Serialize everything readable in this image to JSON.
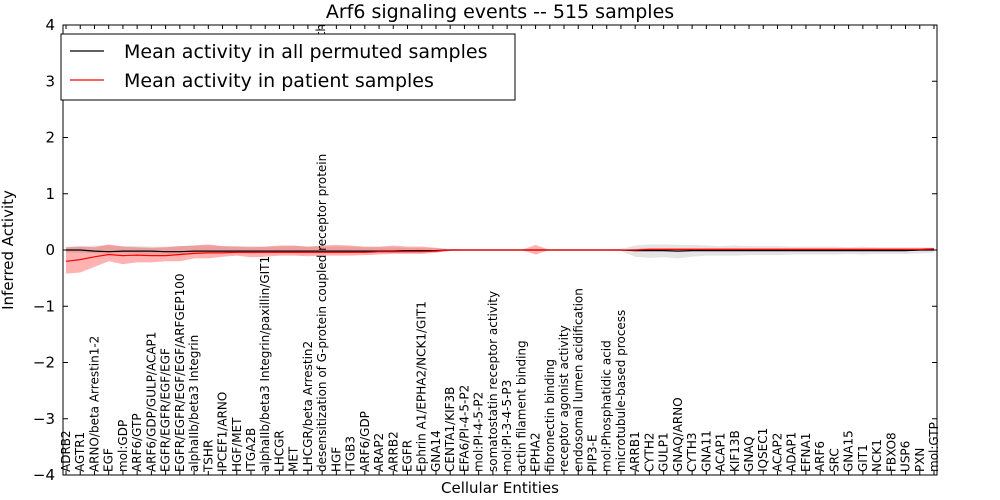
{
  "chart_data": {
    "type": "line",
    "title": "Arf6 signaling events -- 515 samples",
    "xlabel": "Cellular Entities",
    "ylabel": "Inferred Activity",
    "ylim": [
      -4,
      4
    ],
    "yticks": [
      -4,
      -3,
      -2,
      -1,
      0,
      1,
      2,
      3,
      4
    ],
    "grid": false,
    "legend_position": "top-left",
    "overflow_label": "path",
    "categories": [
      "ADRB2",
      "AGTR1",
      "ARNO/beta Arrestin1-2",
      "EGF",
      "mol:GDP",
      "ARF6/GTP",
      "ARF6/GDP/GULP/ACAP1",
      "EGFR/EGFR/EGF/EGF",
      "EGFR/EGFR/EGF/EGF/ARFGEP100",
      "alphaIIb/beta3 Integrin",
      "TSHR",
      "IPCEF1/ARNO",
      "HGF/MET",
      "ITGA2B",
      "alphaIIb/beta3 Integrin/paxillin/GIT1",
      "LHCGR",
      "MET",
      "LHCGR/beta Arrestin2",
      "desensitization of G-protein coupled receptor protein",
      "HGF",
      "ITGB3",
      "ARF6/GDP",
      "ARAP2",
      "ARRB2",
      "EGFR",
      "Ephrin A1/EPHA2/NCK1/GIT1",
      "GNA14",
      "CENTA1/KIF3B",
      "EFA6/PI-4-5-P2",
      "mol:PI-4-5-P2",
      "somatostatin receptor activity",
      "mol:PI-3-4-5-P3",
      "actin filament binding",
      "EPHA2",
      "fibronectin binding",
      "receptor agonist activity",
      "endosomal lumen acidification",
      "PIP3-E",
      "mol:Phosphatidic acid",
      "microtubule-based process",
      "ARRB1",
      "CYTH2",
      "GULP1",
      "GNAQ/ARNO",
      "CYTH3",
      "GNA11",
      "ACAP1",
      "KIF13B",
      "GNAQ",
      "IQSEC1",
      "ACAP2",
      "ADAP1",
      "EFNA1",
      "ARF6",
      "SRC",
      "GNA15",
      "GIT1",
      "NCK1",
      "FBXO8",
      "USP6",
      "PXN",
      "mol:GTP"
    ],
    "series": [
      {
        "name": "Mean activity in all permuted samples",
        "color": "#000000",
        "values": [
          0.0,
          0.0,
          -0.02,
          -0.03,
          -0.02,
          -0.02,
          -0.02,
          -0.03,
          -0.03,
          -0.02,
          -0.02,
          -0.02,
          -0.02,
          -0.02,
          -0.02,
          -0.02,
          -0.02,
          -0.02,
          -0.02,
          -0.02,
          -0.02,
          -0.02,
          -0.02,
          -0.02,
          -0.01,
          -0.01,
          -0.01,
          0.0,
          0.0,
          0.0,
          0.0,
          0.0,
          0.0,
          0.0,
          0.0,
          0.0,
          0.0,
          0.0,
          0.0,
          0.0,
          -0.01,
          -0.01,
          -0.01,
          -0.02,
          -0.01,
          -0.01,
          -0.01,
          -0.01,
          -0.01,
          -0.01,
          -0.01,
          -0.01,
          -0.01,
          -0.01,
          -0.01,
          -0.01,
          -0.01,
          -0.01,
          -0.01,
          -0.01,
          0.0,
          0.0
        ],
        "band_lower": [
          -0.05,
          -0.05,
          -0.06,
          -0.07,
          -0.06,
          -0.07,
          -0.08,
          -0.08,
          -0.09,
          -0.07,
          -0.07,
          -0.07,
          -0.06,
          -0.07,
          -0.06,
          -0.06,
          -0.06,
          -0.06,
          -0.06,
          -0.06,
          -0.05,
          -0.05,
          -0.05,
          -0.05,
          -0.04,
          -0.04,
          -0.03,
          -0.02,
          -0.01,
          -0.01,
          -0.01,
          -0.01,
          -0.01,
          -0.01,
          -0.01,
          -0.01,
          -0.01,
          -0.01,
          -0.01,
          -0.02,
          -0.12,
          -0.14,
          -0.13,
          -0.15,
          -0.12,
          -0.1,
          -0.1,
          -0.1,
          -0.09,
          -0.09,
          -0.09,
          -0.08,
          -0.08,
          -0.08,
          -0.08,
          -0.07,
          -0.08,
          -0.07,
          -0.07,
          -0.07,
          -0.06,
          -0.05
        ],
        "band_upper": [
          0.06,
          0.07,
          0.08,
          0.08,
          0.07,
          0.07,
          0.06,
          0.06,
          0.07,
          0.08,
          0.08,
          0.07,
          0.07,
          0.07,
          0.06,
          0.06,
          0.07,
          0.06,
          0.06,
          0.06,
          0.06,
          0.05,
          0.05,
          0.05,
          0.04,
          0.04,
          0.03,
          0.02,
          0.01,
          0.01,
          0.01,
          0.01,
          0.01,
          0.01,
          0.01,
          0.01,
          0.01,
          0.01,
          0.01,
          0.02,
          0.08,
          0.1,
          0.1,
          0.09,
          0.09,
          0.08,
          0.07,
          0.08,
          0.07,
          0.07,
          0.07,
          0.06,
          0.06,
          0.06,
          0.06,
          0.05,
          0.06,
          0.05,
          0.05,
          0.05,
          0.05,
          0.04
        ]
      },
      {
        "name": "Mean activity in patient samples",
        "color": "#ff0000",
        "values": [
          -0.2,
          -0.17,
          -0.12,
          -0.08,
          -0.1,
          -0.09,
          -0.1,
          -0.1,
          -0.08,
          -0.06,
          -0.05,
          -0.05,
          -0.04,
          -0.04,
          -0.04,
          -0.04,
          -0.04,
          -0.04,
          -0.04,
          -0.04,
          -0.04,
          -0.04,
          -0.03,
          -0.03,
          -0.03,
          -0.03,
          -0.02,
          0.0,
          0.0,
          0.0,
          0.0,
          0.0,
          0.0,
          0.0,
          0.0,
          0.0,
          0.0,
          0.0,
          0.0,
          0.0,
          0.0,
          0.01,
          0.01,
          0.01,
          0.01,
          0.01,
          0.01,
          0.01,
          0.01,
          0.01,
          0.01,
          0.01,
          0.01,
          0.01,
          0.01,
          0.01,
          0.01,
          0.01,
          0.01,
          0.01,
          0.01,
          0.02
        ],
        "band_lower": [
          -0.42,
          -0.4,
          -0.3,
          -0.2,
          -0.25,
          -0.22,
          -0.22,
          -0.2,
          -0.2,
          -0.15,
          -0.15,
          -0.12,
          -0.1,
          -0.13,
          -0.12,
          -0.1,
          -0.1,
          -0.11,
          -0.1,
          -0.1,
          -0.1,
          -0.09,
          -0.08,
          -0.07,
          -0.07,
          -0.07,
          -0.05,
          -0.01,
          0.0,
          0.0,
          0.0,
          0.0,
          0.0,
          -0.08,
          0.0,
          0.0,
          0.0,
          0.0,
          0.0,
          0.0,
          -0.02,
          -0.01,
          -0.01,
          -0.01,
          -0.01,
          -0.01,
          -0.01,
          -0.01,
          -0.01,
          -0.01,
          -0.01,
          -0.01,
          -0.01,
          -0.01,
          -0.01,
          -0.01,
          -0.01,
          -0.01,
          -0.01,
          -0.01,
          -0.01,
          -0.01
        ],
        "band_upper": [
          0.05,
          0.06,
          0.05,
          0.1,
          0.06,
          0.05,
          0.04,
          0.05,
          0.07,
          0.08,
          0.1,
          0.07,
          0.06,
          0.05,
          0.06,
          0.08,
          0.08,
          0.06,
          0.08,
          0.09,
          0.08,
          0.06,
          0.06,
          0.08,
          0.06,
          0.06,
          0.04,
          0.01,
          0.0,
          0.0,
          0.0,
          0.0,
          0.0,
          0.09,
          0.0,
          0.0,
          0.0,
          0.0,
          0.0,
          0.0,
          0.02,
          0.03,
          0.03,
          0.03,
          0.03,
          0.03,
          0.03,
          0.03,
          0.03,
          0.03,
          0.03,
          0.03,
          0.03,
          0.03,
          0.03,
          0.03,
          0.03,
          0.03,
          0.03,
          0.03,
          0.03,
          0.04
        ]
      }
    ]
  }
}
